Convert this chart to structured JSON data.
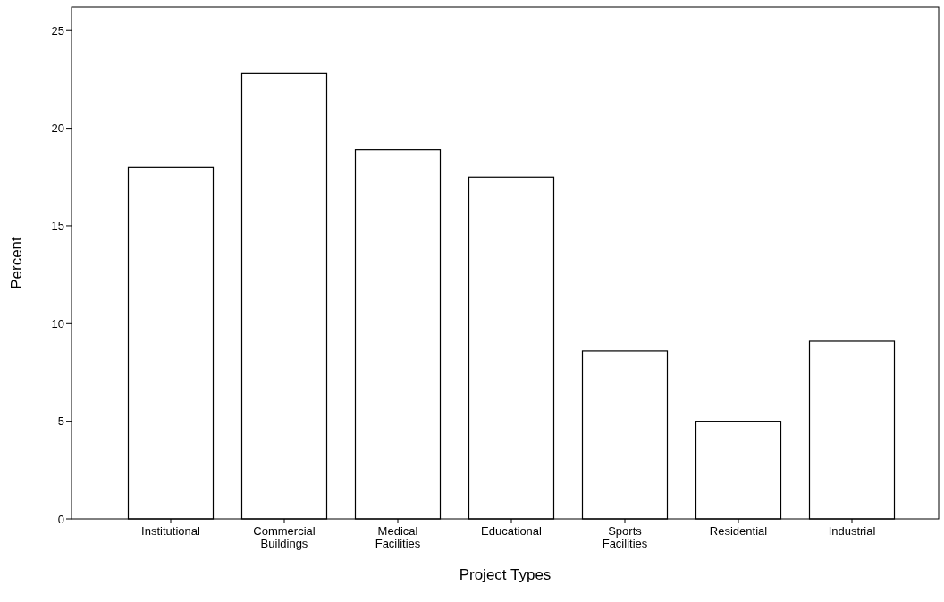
{
  "chart_data": {
    "type": "bar",
    "xlabel": "Project Types",
    "ylabel": "Percent",
    "categories": [
      "Institutional",
      "Commercial Buildings",
      "Medical Facilities",
      "Educational",
      "Sports Facilities",
      "Residential",
      "Industrial"
    ],
    "values": [
      18.0,
      22.8,
      18.9,
      17.5,
      8.6,
      5.0,
      9.1
    ],
    "color": "#ffffff",
    "ylim": [
      0,
      26.2
    ],
    "yticks": [
      0,
      5,
      10,
      15,
      20,
      25
    ],
    "grid": false
  }
}
